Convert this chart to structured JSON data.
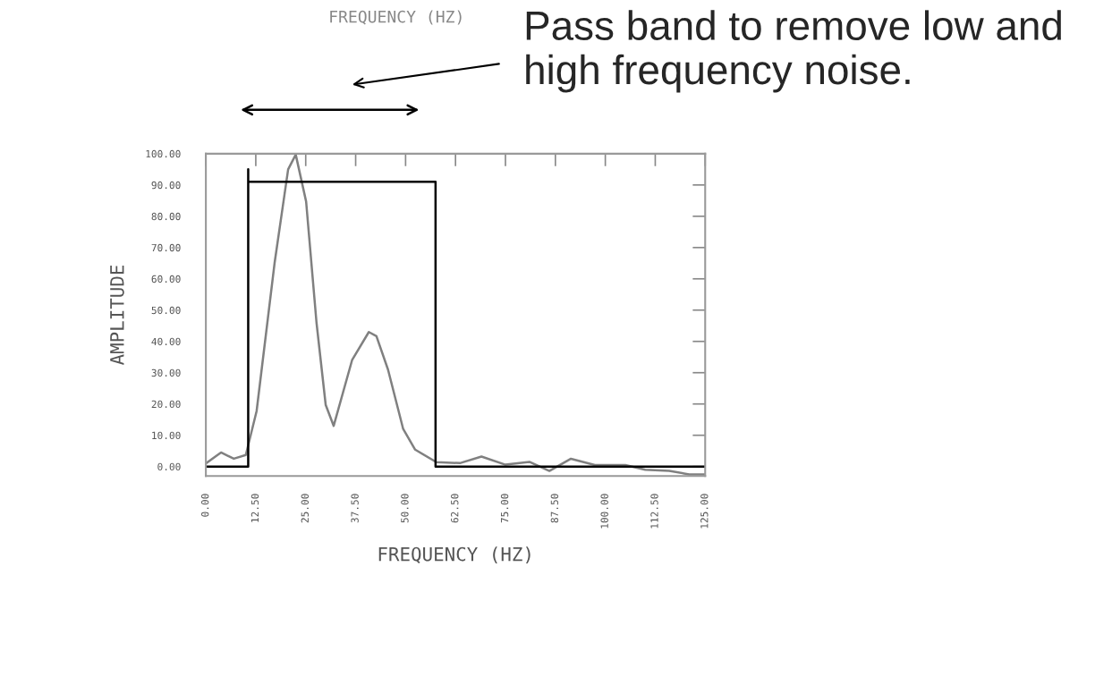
{
  "chart_data": {
    "type": "line",
    "xlabel": "FREQUENCY (HZ)",
    "ylabel": "AMPLITUDE",
    "xlim": [
      0,
      125
    ],
    "ylim": [
      -3,
      100
    ],
    "xticks": [
      {
        "value": 0,
        "label": "0.00"
      },
      {
        "value": 12.5,
        "label": "12.50"
      },
      {
        "value": 25,
        "label": "25.00"
      },
      {
        "value": 37.5,
        "label": "37.50"
      },
      {
        "value": 50,
        "label": "50.00"
      },
      {
        "value": 62.5,
        "label": "62.50"
      },
      {
        "value": 75,
        "label": "75.00"
      },
      {
        "value": 87.5,
        "label": "87.50"
      },
      {
        "value": 100,
        "label": "100.00"
      },
      {
        "value": 112.5,
        "label": "112.50"
      },
      {
        "value": 125,
        "label": "125.00"
      }
    ],
    "yticks": [
      {
        "value": 0,
        "label": "0.00"
      },
      {
        "value": 10,
        "label": "10.00"
      },
      {
        "value": 20,
        "label": "20.00"
      },
      {
        "value": 30,
        "label": "30.00"
      },
      {
        "value": 40,
        "label": "40.00"
      },
      {
        "value": 50,
        "label": "50.00"
      },
      {
        "value": 60,
        "label": "60.00"
      },
      {
        "value": 70,
        "label": "70.00"
      },
      {
        "value": 80,
        "label": "80.00"
      },
      {
        "value": 90,
        "label": "90.00"
      },
      {
        "value": 100,
        "label": "100.00"
      }
    ],
    "grid": false,
    "series": [
      {
        "color": "#808080",
        "x": [
          0,
          3.8,
          7,
          10,
          12.7,
          17.2,
          20.6,
          22.5,
          25.1,
          27.7,
          30,
          32,
          36.6,
          40.8,
          42.7,
          45.6,
          49.4,
          52.4,
          57.7,
          63.6,
          69,
          75,
          81,
          86,
          91.4,
          97.4,
          105,
          110,
          116,
          121,
          125
        ],
        "values": [
          1,
          4.5,
          2.5,
          3.7,
          17.7,
          65,
          95,
          99.7,
          84.7,
          46,
          19.7,
          13,
          34,
          43,
          41.7,
          31,
          12,
          5.4,
          1.4,
          1.1,
          3.2,
          0.6,
          1.5,
          -1.4,
          2.5,
          0.5,
          0.5,
          -1,
          -1.4,
          -2.5,
          -2.5
        ]
      },
      {
        "color": "#000000",
        "x": [
          0,
          10.6,
          10.6,
          10.6,
          57.5,
          57.5,
          125
        ],
        "values": [
          0,
          0,
          95,
          91,
          91,
          0,
          0
        ]
      }
    ],
    "annotations": [
      "FREQUENCY (HZ)",
      "Pass band to remove low and high frequency noise."
    ]
  }
}
